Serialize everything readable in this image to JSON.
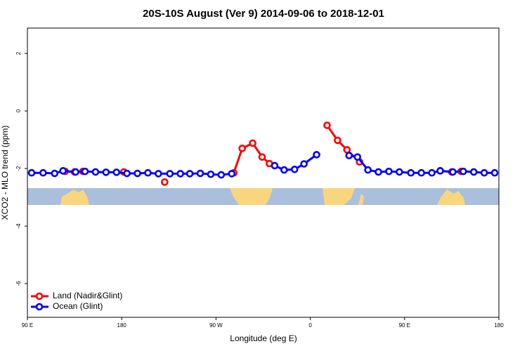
{
  "chart_data": {
    "type": "line",
    "title": "20S-10S August (Ver 9)   2014-09-06 to 2018-12-01",
    "x_label": "Longitude (deg E)",
    "y_label": "XCO2 - MLO trend (ppm)",
    "xlim": [
      90,
      540
    ],
    "ylim": [
      -7.17,
      2.88
    ],
    "xticks": [
      {
        "value": 90,
        "label": "90 E"
      },
      {
        "value": 180,
        "label": "180"
      },
      {
        "value": 270,
        "label": "90 W"
      },
      {
        "value": 360,
        "label": "0"
      },
      {
        "value": 450,
        "label": "90 E"
      },
      {
        "value": 540,
        "label": "180"
      }
    ],
    "yticks": [
      -6,
      -4,
      -2,
      0,
      2
    ],
    "legend": "bottom-left",
    "series": [
      {
        "name": "Land (Nadir&Glint)",
        "color": "#ff0000",
        "x": [
          126,
          135,
          143,
          160,
          182,
          200,
          221,
          250,
          287,
          295,
          305,
          314,
          321,
          350,
          376,
          386,
          395,
          407,
          450,
          484,
          495,
          504
        ],
        "values": [
          -2.1,
          -2.12,
          -2.1,
          null,
          -2.12,
          null,
          -2.47,
          null,
          -2.15,
          -1.3,
          -1.12,
          -1.6,
          -1.83,
          null,
          -0.5,
          -1.02,
          -1.35,
          -1.77,
          null,
          -2.08,
          -2.12,
          -2.1
        ]
      },
      {
        "name": "Ocean (Glint)",
        "color": "#0000ff",
        "x": [
          94,
          105,
          116,
          124,
          136,
          145,
          155,
          165,
          175,
          185,
          195,
          205,
          215,
          226,
          236,
          245,
          255,
          265,
          275,
          285,
          305,
          326,
          335,
          345,
          354,
          366,
          380,
          397,
          405,
          415,
          425,
          435,
          445,
          456,
          466,
          476,
          484,
          496,
          506,
          516,
          526,
          536
        ],
        "values": [
          -2.15,
          -2.15,
          -2.17,
          -2.08,
          -2.12,
          -2.1,
          -2.12,
          -2.13,
          -2.13,
          -2.17,
          -2.17,
          -2.15,
          -2.18,
          -2.18,
          -2.18,
          -2.18,
          -2.17,
          -2.2,
          -2.22,
          -2.18,
          null,
          -1.9,
          -2.05,
          -2.03,
          -1.84,
          -1.52,
          null,
          -1.55,
          -1.6,
          -2.05,
          -2.12,
          -2.1,
          -2.12,
          -2.15,
          -2.15,
          -2.15,
          -2.08,
          -2.12,
          -2.1,
          -2.12,
          -2.15,
          -2.15
        ]
      }
    ]
  }
}
